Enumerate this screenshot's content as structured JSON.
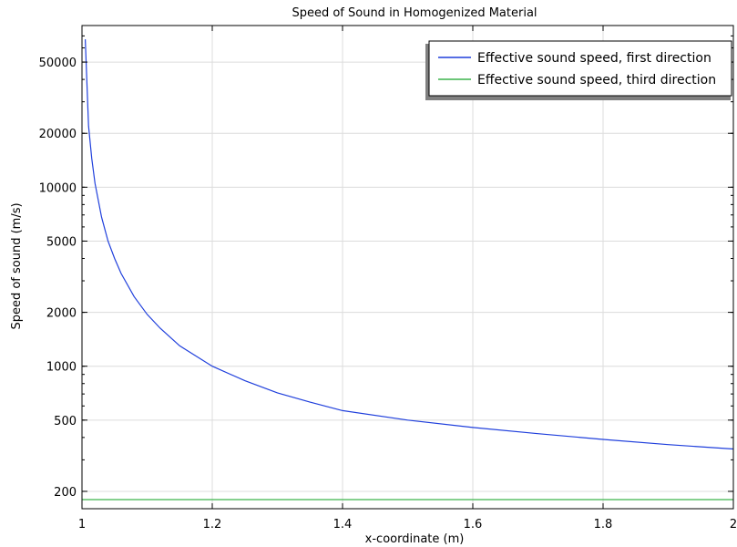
{
  "chart_data": {
    "type": "line",
    "title": "Speed of Sound in Homogenized Material",
    "xlabel": "x-coordinate (m)",
    "ylabel": "Speed of sound (m/s)",
    "xlim": [
      1.0,
      2.0
    ],
    "ylim": [
      160,
      80000
    ],
    "yscale": "log",
    "grid": true,
    "legend_position": "top-right",
    "xticks": [
      1,
      1.2,
      1.4,
      1.6,
      1.8,
      2
    ],
    "xtick_labels": [
      "1",
      "1.2",
      "1.4",
      "1.6",
      "1.8",
      "2"
    ],
    "yticks": [
      200,
      500,
      1000,
      2000,
      5000,
      10000,
      20000,
      50000
    ],
    "ytick_labels": [
      "200",
      "500",
      "1000",
      "2000",
      "5000",
      "10000",
      "20000",
      "50000"
    ],
    "series": [
      {
        "name": "Effective sound speed, first direction",
        "color": "#1f3fdc",
        "x": [
          1.005,
          1.01,
          1.015,
          1.02,
          1.03,
          1.04,
          1.05,
          1.06,
          1.08,
          1.1,
          1.12,
          1.15,
          1.2,
          1.25,
          1.3,
          1.35,
          1.4,
          1.5,
          1.6,
          1.7,
          1.8,
          1.9,
          2.0
        ],
        "y": [
          67000,
          22000,
          14500,
          10500,
          6800,
          5000,
          4000,
          3300,
          2450,
          1950,
          1630,
          1300,
          1000,
          830,
          710,
          630,
          565,
          500,
          455,
          420,
          390,
          365,
          345
        ]
      },
      {
        "name": "Effective sound speed, third direction",
        "color": "#3cb44b",
        "x": [
          1.0,
          2.0
        ],
        "y": [
          180,
          180
        ]
      }
    ]
  }
}
